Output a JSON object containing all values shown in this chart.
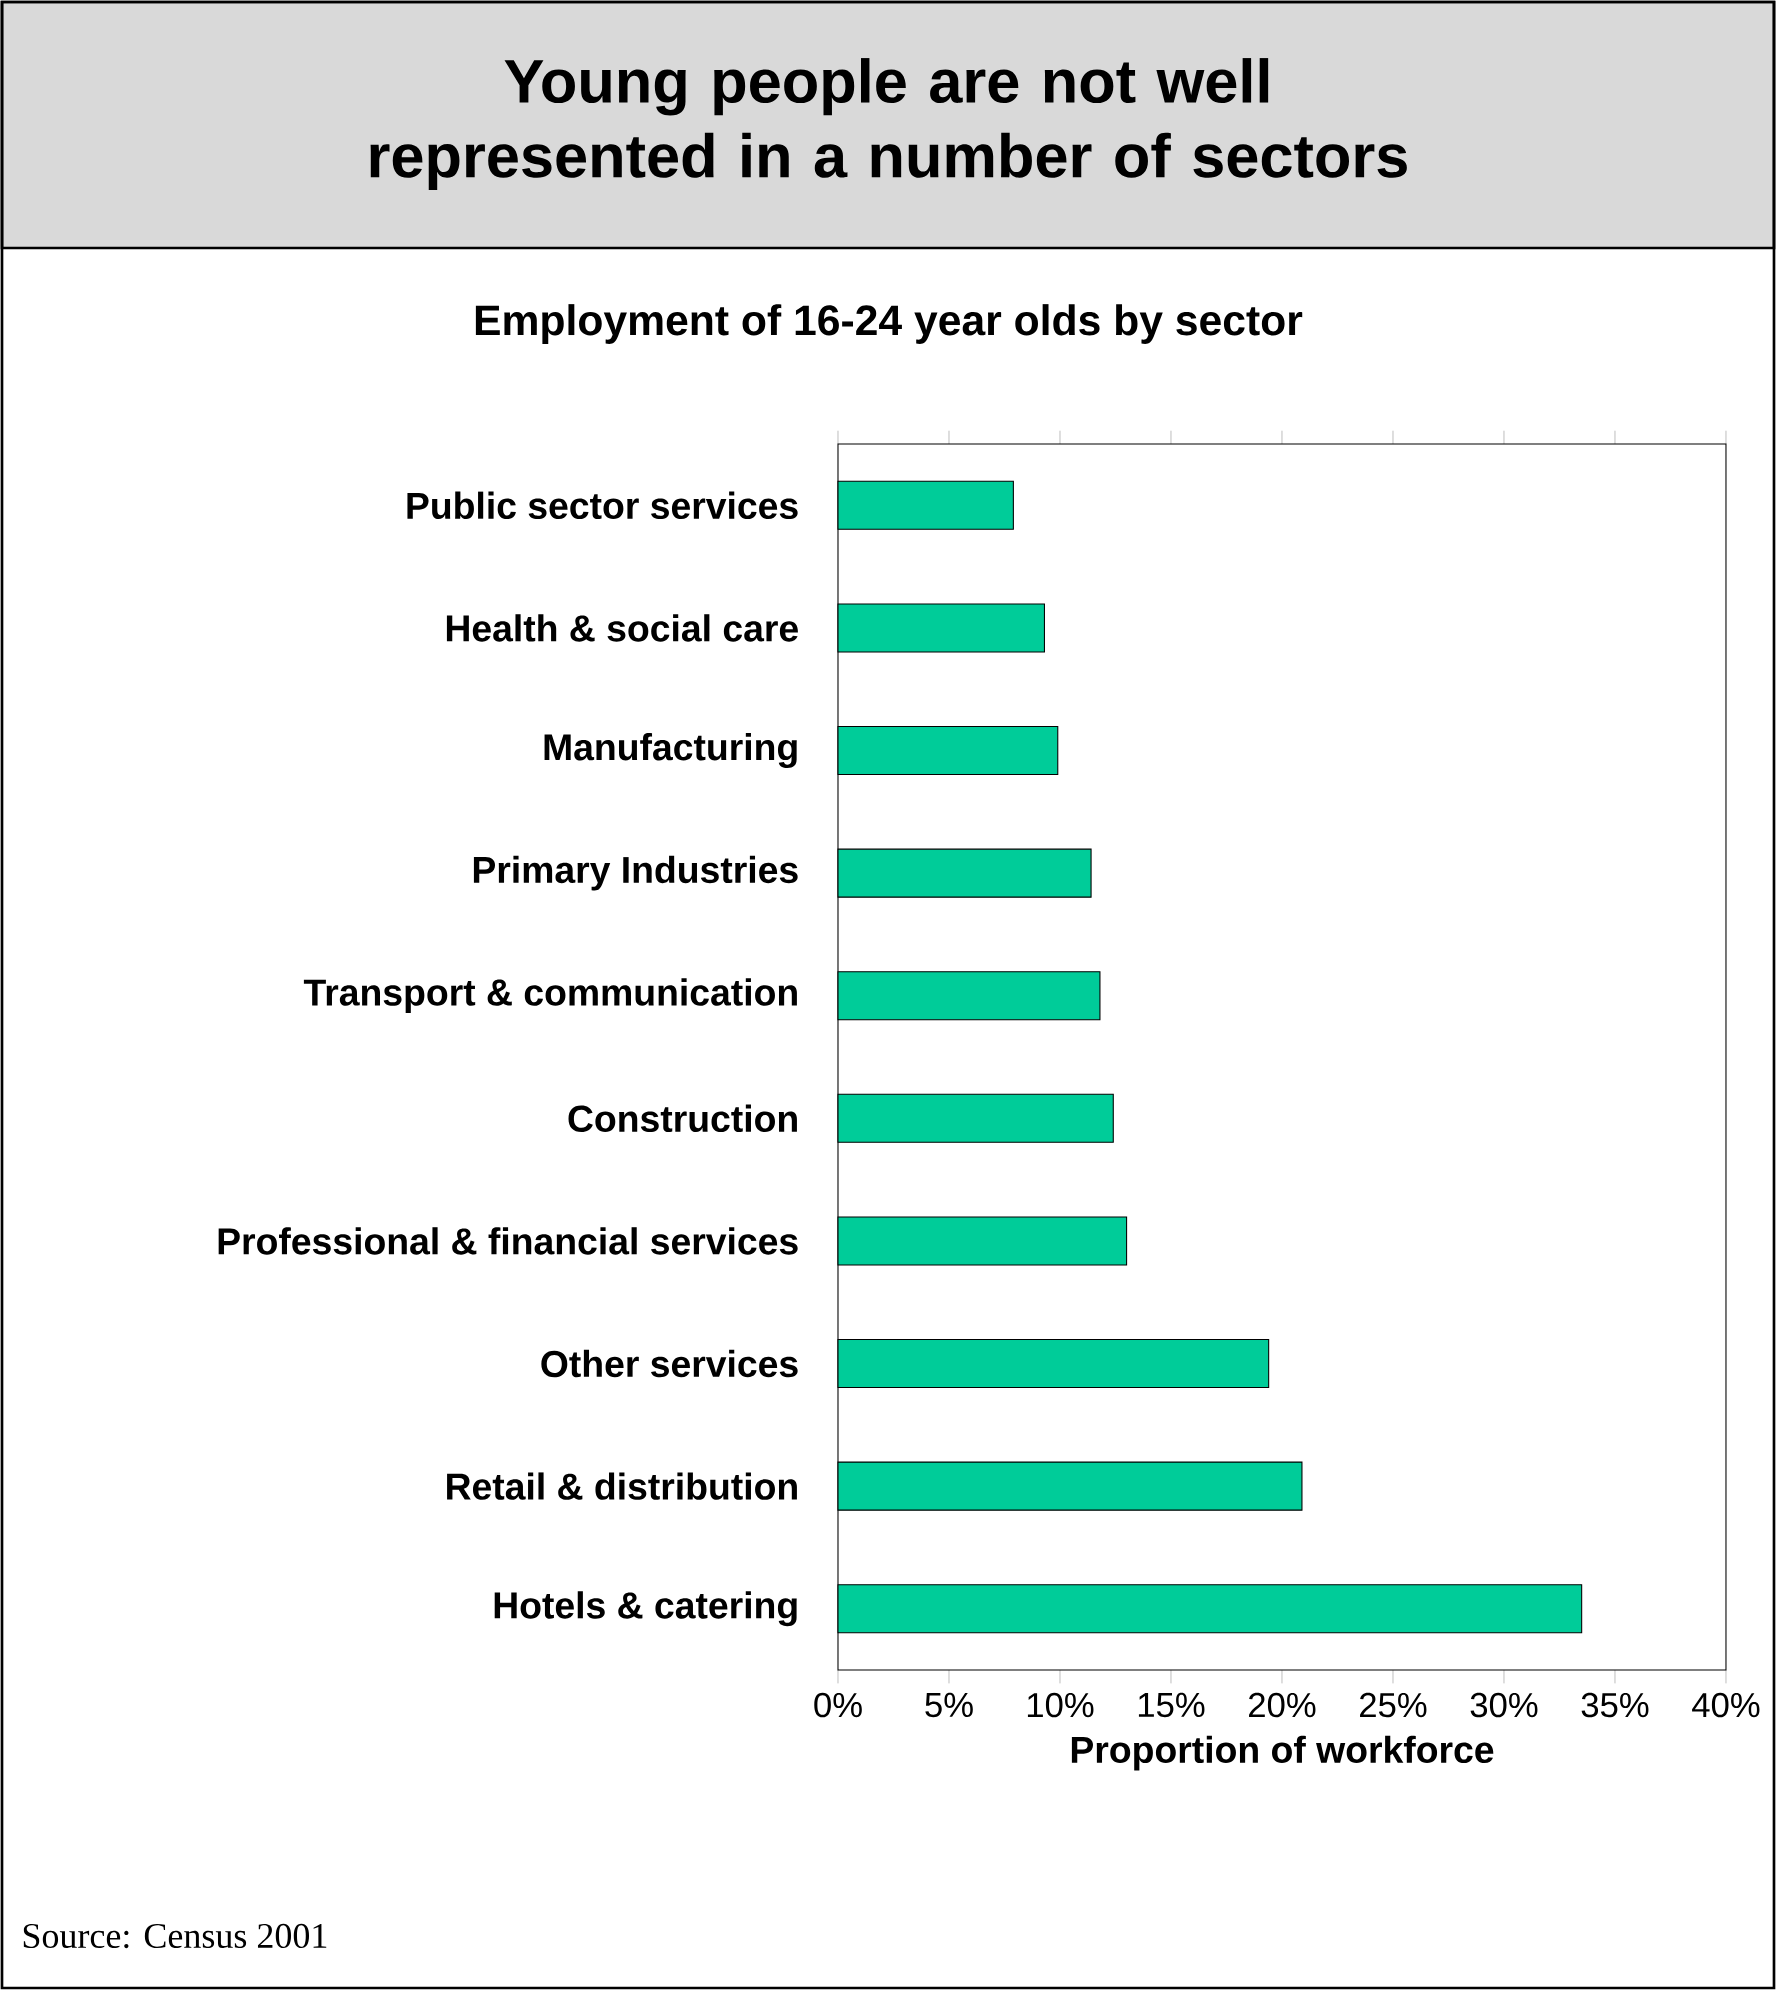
{
  "chart_data": {
    "type": "bar",
    "orientation": "horizontal",
    "title": "Young people are not well represented in a number of sectors",
    "subtitle": "Employment of 16-24 year olds by sector",
    "xlabel": "Proportion of workforce",
    "categories": [
      "Public sector services",
      "Health & social care",
      "Manufacturing",
      "Primary Industries",
      "Transport & communication",
      "Construction",
      "Professional & financial services",
      "Other services",
      "Retail & distribution",
      "Hotels & catering"
    ],
    "values": [
      7.9,
      9.3,
      9.9,
      11.4,
      11.8,
      12.4,
      13.0,
      19.4,
      20.9,
      33.5
    ],
    "color": "#00cc99",
    "xlim": [
      0,
      40
    ],
    "xticks": [
      {
        "value": 0,
        "label": "0%"
      },
      {
        "value": 5,
        "label": "5%"
      },
      {
        "value": 10,
        "label": "10%"
      },
      {
        "value": 15,
        "label": "15%"
      },
      {
        "value": 20,
        "label": "20%"
      },
      {
        "value": 25,
        "label": "25%"
      },
      {
        "value": 30,
        "label": "30%"
      },
      {
        "value": 35,
        "label": "35%"
      },
      {
        "value": 40,
        "label": "40%"
      }
    ],
    "annotations": [
      "Source: Census 2001"
    ]
  }
}
